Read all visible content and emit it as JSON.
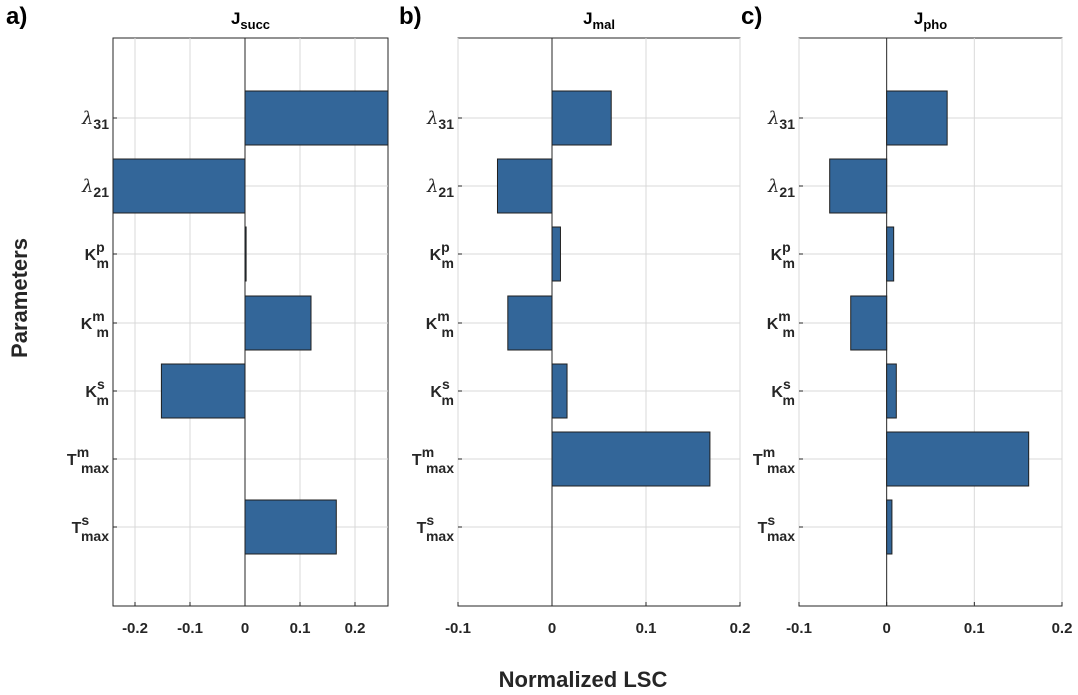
{
  "ylabel": "Parameters",
  "xlabel": "Normalized LSC",
  "chart_data": [
    {
      "type": "bar",
      "orientation": "horizontal",
      "panel_letter": "a)",
      "title": "J",
      "title_sub": "succ",
      "xlim": [
        -0.24,
        0.26
      ],
      "xticks": [
        -0.2,
        -0.1,
        0,
        0.1,
        0.2
      ],
      "xtick_labels": [
        "-0.2",
        "-0.1",
        "0",
        "0.1",
        "0.2"
      ],
      "grid": true,
      "categories": [
        {
          "base": "λ",
          "sub": "31",
          "sup": ""
        },
        {
          "base": "λ",
          "sub": "21",
          "sup": ""
        },
        {
          "base": "K",
          "sub": "m",
          "sup": "p"
        },
        {
          "base": "K",
          "sub": "m",
          "sup": "m"
        },
        {
          "base": "K",
          "sub": "m",
          "sup": "s"
        },
        {
          "base": "T",
          "sub": "max",
          "sup": "m"
        },
        {
          "base": "T",
          "sub": "max",
          "sup": "s"
        }
      ],
      "values": [
        0.26,
        -0.24,
        0.002,
        0.12,
        -0.152,
        0.0,
        0.166
      ]
    },
    {
      "type": "bar",
      "orientation": "horizontal",
      "panel_letter": "b)",
      "title": "J",
      "title_sub": "mal",
      "xlim": [
        -0.1,
        0.2
      ],
      "xticks": [
        -0.1,
        0,
        0.1,
        0.2
      ],
      "xtick_labels": [
        "-0.1",
        "0",
        "0.1",
        "0.2"
      ],
      "grid": true,
      "categories": [
        {
          "base": "λ",
          "sub": "31",
          "sup": ""
        },
        {
          "base": "λ",
          "sub": "21",
          "sup": ""
        },
        {
          "base": "K",
          "sub": "m",
          "sup": "p"
        },
        {
          "base": "K",
          "sub": "m",
          "sup": "m"
        },
        {
          "base": "K",
          "sub": "m",
          "sup": "s"
        },
        {
          "base": "T",
          "sub": "max",
          "sup": "m"
        },
        {
          "base": "T",
          "sub": "max",
          "sup": "s"
        }
      ],
      "values": [
        0.063,
        -0.058,
        0.009,
        -0.047,
        0.016,
        0.168,
        0.0
      ]
    },
    {
      "type": "bar",
      "orientation": "horizontal",
      "panel_letter": "c)",
      "title": "J",
      "title_sub": "pho",
      "xlim": [
        -0.1,
        0.2
      ],
      "xticks": [
        -0.1,
        0,
        0.1,
        0.2
      ],
      "xtick_labels": [
        "-0.1",
        "0",
        "0.1",
        "0.2"
      ],
      "grid": true,
      "categories": [
        {
          "base": "λ",
          "sub": "31",
          "sup": ""
        },
        {
          "base": "λ",
          "sub": "21",
          "sup": ""
        },
        {
          "base": "K",
          "sub": "m",
          "sup": "p"
        },
        {
          "base": "K",
          "sub": "m",
          "sup": "m"
        },
        {
          "base": "K",
          "sub": "m",
          "sup": "s"
        },
        {
          "base": "T",
          "sub": "max",
          "sup": "m"
        },
        {
          "base": "T",
          "sub": "max",
          "sup": "s"
        }
      ],
      "values": [
        0.069,
        -0.065,
        0.008,
        -0.041,
        0.011,
        0.162,
        0.006
      ]
    }
  ],
  "colors": {
    "bar_fill": "#336699",
    "bar_edge": "#1f1f1f",
    "grid": "#d9d9d9",
    "axis": "#262626"
  }
}
